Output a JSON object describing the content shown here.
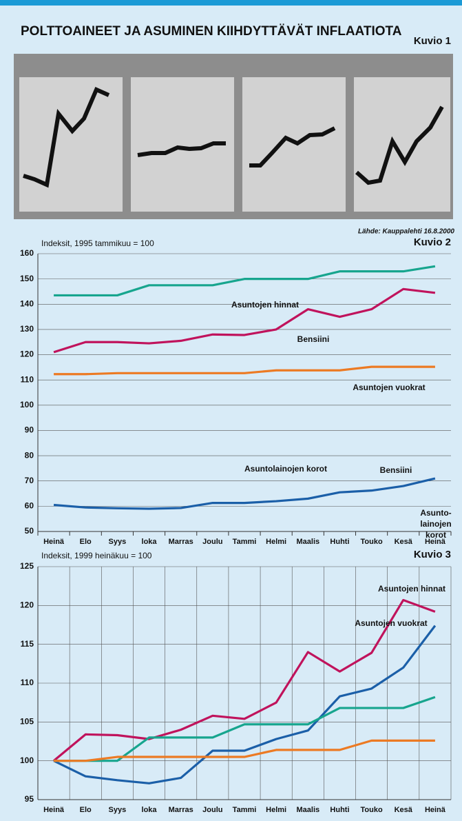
{
  "header": {
    "title": "POLTTOAINEET JA ASUMINEN KIIHDYTTÄVÄT INFLAATIOTA",
    "figure_label": "Kuvio 1",
    "source": "Lähde: Kauppalehti 16.8.2000"
  },
  "chart_data": [
    {
      "type": "line",
      "figure_label": "Kuvio 2",
      "ylabel": "Indeksit, 1995 tammikuu = 100",
      "categories": [
        "Heinä",
        "Elo",
        "Syys",
        "loka",
        "Marras",
        "Joulu",
        "Tammi",
        "Helmi",
        "Maalis",
        "Huhti",
        "Touko",
        "Kesä",
        "Heinä"
      ],
      "ylim": [
        50,
        160
      ],
      "yticks": [
        50,
        60,
        70,
        80,
        90,
        100,
        110,
        120,
        130,
        140,
        150,
        160
      ],
      "grid": true,
      "series": [
        {
          "name": "Asuntojen hinnat",
          "color": "#17a58e",
          "values": [
            143.5,
            143.5,
            143.5,
            147.5,
            147.5,
            147.5,
            150,
            150,
            150,
            153,
            153,
            153,
            155
          ]
        },
        {
          "name": "Bensiini",
          "color": "#c0135c",
          "values": [
            121,
            125,
            125,
            124.5,
            125.5,
            128,
            127.8,
            130,
            138,
            135,
            138,
            146,
            144.5
          ]
        },
        {
          "name": "Asuntojen vuokrat",
          "color": "#ec7a23",
          "values": [
            112.3,
            112.3,
            112.7,
            112.7,
            112.7,
            112.7,
            112.7,
            113.8,
            113.8,
            113.8,
            115.2,
            115.2,
            115.2
          ]
        },
        {
          "name": "Asuntolainojen korot",
          "color": "#1b5fa8",
          "values": [
            60.5,
            59.5,
            59.2,
            59,
            59.3,
            61.3,
            61.3,
            62,
            63,
            65.5,
            66.2,
            68,
            71
          ]
        }
      ]
    },
    {
      "type": "line",
      "figure_label": "Kuvio 3",
      "ylabel": "Indeksit, 1999 heinäkuu = 100",
      "categories": [
        "Heinä",
        "Elo",
        "Syys",
        "loka",
        "Marras",
        "Joulu",
        "Tammi",
        "Helmi",
        "Maalis",
        "Huhti",
        "Touko",
        "Kesä",
        "Heinä"
      ],
      "ylim": [
        95,
        125
      ],
      "yticks": [
        95,
        100,
        105,
        110,
        115,
        120,
        125
      ],
      "grid": true,
      "series": [
        {
          "name": "Bensiini",
          "color": "#c0135c",
          "values": [
            100,
            103.4,
            103.3,
            102.8,
            104,
            105.8,
            105.4,
            107.5,
            114,
            111.5,
            113.9,
            120.7,
            119.2
          ]
        },
        {
          "name": "Asuntolainojen korot",
          "label_lines": [
            "Asunto-",
            "lainojen",
            "korot"
          ],
          "color": "#1b5fa8",
          "values": [
            100,
            98,
            97.5,
            97.1,
            97.8,
            101.3,
            101.3,
            102.8,
            103.9,
            108.3,
            109.3,
            112,
            117.4
          ]
        },
        {
          "name": "Asuntojen hinnat",
          "color": "#17a58e",
          "values": [
            100,
            100,
            100,
            103,
            103,
            103,
            104.7,
            104.7,
            104.7,
            106.8,
            106.8,
            106.8,
            108.2
          ]
        },
        {
          "name": "Asuntojen vuokrat",
          "color": "#ec7a23",
          "values": [
            100,
            100,
            100.5,
            100.5,
            100.5,
            100.5,
            100.5,
            101.4,
            101.4,
            101.4,
            102.6,
            102.6,
            102.6
          ]
        }
      ]
    }
  ]
}
